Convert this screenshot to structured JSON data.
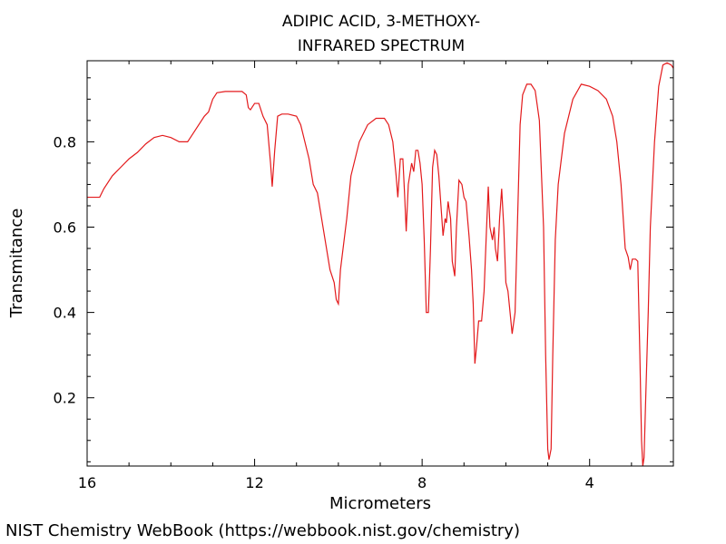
{
  "chart_data": {
    "type": "line",
    "title": "ADIPIC ACID, 3-METHOXY-",
    "subtitle": "INFRARED SPECTRUM",
    "xlabel": "Micrometers",
    "ylabel": "Transmitance",
    "xlim": [
      16,
      2
    ],
    "ylim": [
      0.04,
      0.99
    ],
    "x_ticks": [
      16,
      12,
      8,
      4
    ],
    "y_ticks": [
      0.2,
      0.4,
      0.6,
      0.8
    ],
    "grid": false,
    "legend": "none",
    "line_color": "#e31a1c",
    "series": [
      {
        "points": [
          [
            16.0,
            0.67
          ],
          [
            15.7,
            0.67
          ],
          [
            15.6,
            0.69
          ],
          [
            15.4,
            0.72
          ],
          [
            15.2,
            0.74
          ],
          [
            15.0,
            0.76
          ],
          [
            14.8,
            0.775
          ],
          [
            14.6,
            0.795
          ],
          [
            14.4,
            0.81
          ],
          [
            14.2,
            0.815
          ],
          [
            14.0,
            0.81
          ],
          [
            13.8,
            0.8
          ],
          [
            13.6,
            0.8
          ],
          [
            13.4,
            0.83
          ],
          [
            13.2,
            0.86
          ],
          [
            13.1,
            0.87
          ],
          [
            13.0,
            0.9
          ],
          [
            12.9,
            0.915
          ],
          [
            12.7,
            0.918
          ],
          [
            12.5,
            0.918
          ],
          [
            12.3,
            0.918
          ],
          [
            12.2,
            0.91
          ],
          [
            12.15,
            0.88
          ],
          [
            12.1,
            0.875
          ],
          [
            12.0,
            0.89
          ],
          [
            11.9,
            0.89
          ],
          [
            11.8,
            0.86
          ],
          [
            11.7,
            0.84
          ],
          [
            11.62,
            0.75
          ],
          [
            11.58,
            0.695
          ],
          [
            11.52,
            0.78
          ],
          [
            11.45,
            0.86
          ],
          [
            11.35,
            0.865
          ],
          [
            11.2,
            0.865
          ],
          [
            11.0,
            0.86
          ],
          [
            10.9,
            0.84
          ],
          [
            10.8,
            0.8
          ],
          [
            10.7,
            0.76
          ],
          [
            10.6,
            0.7
          ],
          [
            10.5,
            0.68
          ],
          [
            10.4,
            0.62
          ],
          [
            10.3,
            0.56
          ],
          [
            10.2,
            0.5
          ],
          [
            10.1,
            0.47
          ],
          [
            10.05,
            0.43
          ],
          [
            10.0,
            0.42
          ],
          [
            9.95,
            0.5
          ],
          [
            9.8,
            0.62
          ],
          [
            9.7,
            0.72
          ],
          [
            9.5,
            0.8
          ],
          [
            9.3,
            0.84
          ],
          [
            9.1,
            0.855
          ],
          [
            8.9,
            0.855
          ],
          [
            8.8,
            0.84
          ],
          [
            8.7,
            0.8
          ],
          [
            8.62,
            0.72
          ],
          [
            8.58,
            0.67
          ],
          [
            8.52,
            0.76
          ],
          [
            8.46,
            0.76
          ],
          [
            8.42,
            0.68
          ],
          [
            8.38,
            0.59
          ],
          [
            8.33,
            0.7
          ],
          [
            8.25,
            0.75
          ],
          [
            8.2,
            0.73
          ],
          [
            8.15,
            0.78
          ],
          [
            8.1,
            0.78
          ],
          [
            8.05,
            0.75
          ],
          [
            8.0,
            0.7
          ],
          [
            7.95,
            0.57
          ],
          [
            7.9,
            0.4
          ],
          [
            7.85,
            0.4
          ],
          [
            7.8,
            0.55
          ],
          [
            7.75,
            0.74
          ],
          [
            7.7,
            0.78
          ],
          [
            7.65,
            0.77
          ],
          [
            7.6,
            0.72
          ],
          [
            7.55,
            0.65
          ],
          [
            7.5,
            0.58
          ],
          [
            7.45,
            0.62
          ],
          [
            7.42,
            0.61
          ],
          [
            7.38,
            0.66
          ],
          [
            7.32,
            0.62
          ],
          [
            7.28,
            0.52
          ],
          [
            7.22,
            0.485
          ],
          [
            7.18,
            0.6
          ],
          [
            7.12,
            0.71
          ],
          [
            7.05,
            0.7
          ],
          [
            7.0,
            0.67
          ],
          [
            6.95,
            0.66
          ],
          [
            6.88,
            0.58
          ],
          [
            6.82,
            0.5
          ],
          [
            6.78,
            0.42
          ],
          [
            6.74,
            0.28
          ],
          [
            6.7,
            0.32
          ],
          [
            6.65,
            0.38
          ],
          [
            6.58,
            0.38
          ],
          [
            6.52,
            0.45
          ],
          [
            6.46,
            0.6
          ],
          [
            6.42,
            0.695
          ],
          [
            6.38,
            0.6
          ],
          [
            6.32,
            0.57
          ],
          [
            6.28,
            0.6
          ],
          [
            6.25,
            0.55
          ],
          [
            6.2,
            0.52
          ],
          [
            6.15,
            0.62
          ],
          [
            6.1,
            0.69
          ],
          [
            6.05,
            0.6
          ],
          [
            6.0,
            0.47
          ],
          [
            5.95,
            0.45
          ],
          [
            5.9,
            0.4
          ],
          [
            5.85,
            0.35
          ],
          [
            5.78,
            0.4
          ],
          [
            5.72,
            0.62
          ],
          [
            5.66,
            0.84
          ],
          [
            5.6,
            0.91
          ],
          [
            5.5,
            0.935
          ],
          [
            5.4,
            0.935
          ],
          [
            5.3,
            0.92
          ],
          [
            5.2,
            0.85
          ],
          [
            5.1,
            0.6
          ],
          [
            5.05,
            0.3
          ],
          [
            5.0,
            0.08
          ],
          [
            4.97,
            0.055
          ],
          [
            4.92,
            0.08
          ],
          [
            4.88,
            0.3
          ],
          [
            4.82,
            0.57
          ],
          [
            4.75,
            0.7
          ],
          [
            4.6,
            0.82
          ],
          [
            4.4,
            0.9
          ],
          [
            4.2,
            0.935
          ],
          [
            4.0,
            0.93
          ],
          [
            3.8,
            0.92
          ],
          [
            3.6,
            0.9
          ],
          [
            3.45,
            0.86
          ],
          [
            3.35,
            0.8
          ],
          [
            3.25,
            0.7
          ],
          [
            3.15,
            0.55
          ],
          [
            3.08,
            0.53
          ],
          [
            3.03,
            0.5
          ],
          [
            2.98,
            0.525
          ],
          [
            2.9,
            0.525
          ],
          [
            2.85,
            0.52
          ],
          [
            2.8,
            0.3
          ],
          [
            2.76,
            0.1
          ],
          [
            2.73,
            0.04
          ],
          [
            2.7,
            0.06
          ],
          [
            2.66,
            0.2
          ],
          [
            2.6,
            0.4
          ],
          [
            2.55,
            0.6
          ],
          [
            2.45,
            0.8
          ],
          [
            2.35,
            0.93
          ],
          [
            2.25,
            0.98
          ],
          [
            2.15,
            0.985
          ],
          [
            2.05,
            0.98
          ],
          [
            1.95,
            0.965
          ],
          [
            1.9,
            0.98
          ],
          [
            1.8,
            0.985
          ],
          [
            1.7,
            0.98
          ]
        ]
      }
    ]
  },
  "footer": "NIST Chemistry WebBook (https://webbook.nist.gov/chemistry)"
}
